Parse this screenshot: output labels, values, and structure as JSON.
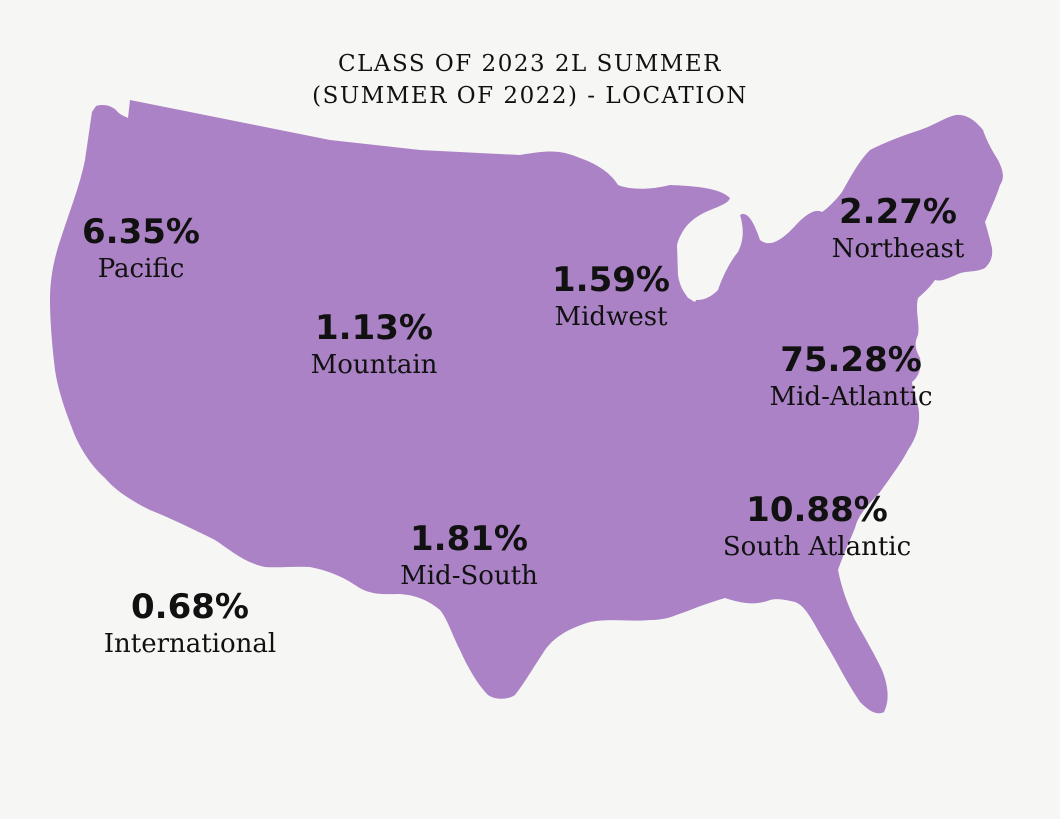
{
  "title": {
    "line1": "CLASS OF 2023 2L SUMMER",
    "line2": "(SUMMER OF 2022) - LOCATION"
  },
  "map": {
    "fill_color": "#ab82c5",
    "background_color": "#f6f6f4"
  },
  "regions": [
    {
      "id": "pacific",
      "name": "Pacific",
      "percent": "6.35%"
    },
    {
      "id": "mountain",
      "name": "Mountain",
      "percent": "1.13%"
    },
    {
      "id": "midwest",
      "name": "Midwest",
      "percent": "1.59%"
    },
    {
      "id": "northeast",
      "name": "Northeast",
      "percent": "2.27%"
    },
    {
      "id": "mid-atlantic",
      "name": "Mid-Atlantic",
      "percent": "75.28%"
    },
    {
      "id": "south-atlantic",
      "name": "South Atlantic",
      "percent": "10.88%"
    },
    {
      "id": "mid-south",
      "name": "Mid-South",
      "percent": "1.81%"
    },
    {
      "id": "international",
      "name": "International",
      "percent": "0.68%"
    }
  ]
}
